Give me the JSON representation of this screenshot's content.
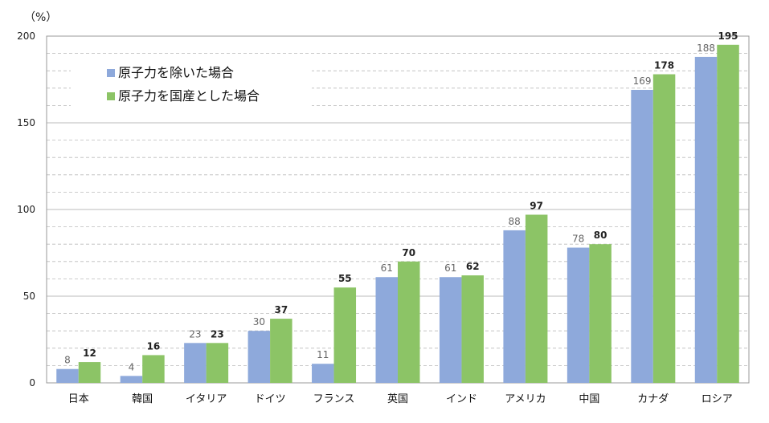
{
  "chart_data": {
    "type": "bar",
    "unit_label": "（%）",
    "categories": [
      "日本",
      "韓国",
      "イタリア",
      "ドイツ",
      "フランス",
      "英国",
      "インド",
      "アメリカ",
      "中国",
      "カナダ",
      "ロシア"
    ],
    "series": [
      {
        "name": "原子力を除いた場合",
        "values": [
          8,
          4,
          23,
          30,
          11,
          61,
          61,
          88,
          78,
          169,
          188
        ],
        "color": "#8EA9DB"
      },
      {
        "name": "原子力を国産とした場合",
        "values": [
          12,
          16,
          23,
          37,
          55,
          70,
          62,
          97,
          80,
          178,
          195
        ],
        "color": "#8CC466"
      }
    ],
    "ylim": [
      0,
      200
    ],
    "yticks": [
      0,
      50,
      100,
      150,
      200
    ],
    "grid": true,
    "legend": "top-left"
  },
  "colors": {
    "axis": "#999999",
    "grid": "#BBBBBB"
  }
}
